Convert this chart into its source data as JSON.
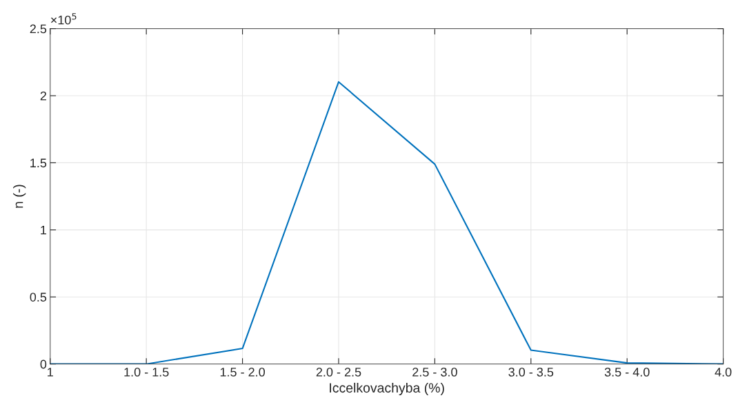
{
  "chart_data": {
    "type": "line",
    "xlabel": "Iccelkovachyba (%)",
    "ylabel": "n (-)",
    "categories": [
      "1",
      "1.0 - 1.5",
      "1.5 - 2.0",
      "2.0 - 2.5",
      "2.5 - 3.0",
      "3.0 - 3.5",
      "3.5 - 4.0",
      "4.0"
    ],
    "series": [
      {
        "color": "#0072bd",
        "values": [
          0,
          0,
          0.116,
          2.103,
          1.49,
          0.103,
          0.008,
          0
        ]
      }
    ],
    "ylim": [
      0,
      2.5
    ],
    "yticks": [
      0,
      0.5,
      1,
      1.5,
      2,
      2.5
    ],
    "annotations": [
      "×10$^{5}$"
    ],
    "grid": true,
    "legend": false,
    "marker": "none",
    "line_style": "solid"
  }
}
